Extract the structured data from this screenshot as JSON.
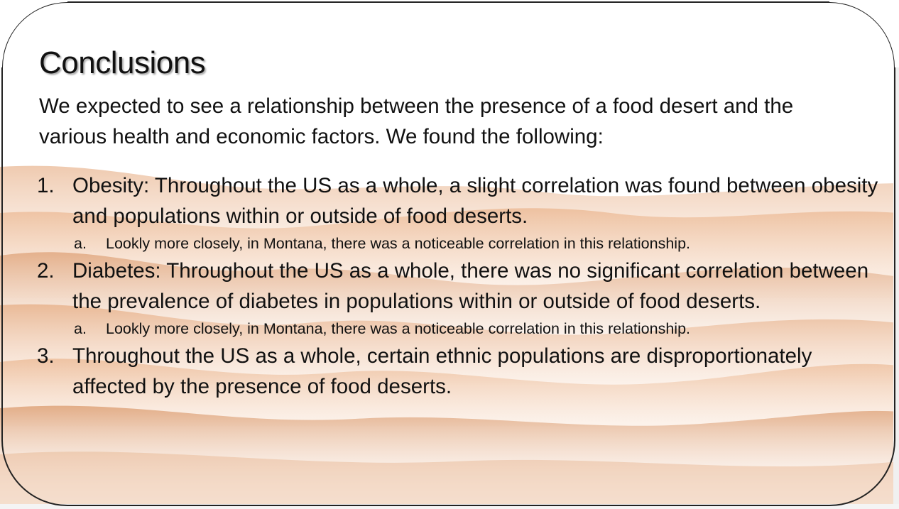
{
  "slide": {
    "title": "Conclusions",
    "intro": "We expected to see a relationship between the presence of a food desert and the various health and economic factors. We found the following:",
    "items": [
      {
        "marker": "1.",
        "text": "Obesity:  Throughout the US as a whole, a slight correlation was found between obesity and populations within or outside of food deserts.",
        "sub": {
          "marker": "a.",
          "text": "Lookly more closely, in Montana, there was a noticeable correlation in this relationship."
        }
      },
      {
        "marker": "2.",
        "text": "Diabetes:  Throughout the US as a whole, there was no significant correlation between the prevalence of diabetes in populations within or outside of food deserts.",
        "sub": {
          "marker": "a.",
          "text": "Lookly more closely, in Montana, there was a noticeable correlation in this relationship."
        }
      },
      {
        "marker": "3.",
        "text": "Throughout the US as a whole, certain ethnic populations are disproportionately affected by the presence of food deserts."
      }
    ]
  },
  "colors": {
    "dune_dark": "#d98a52",
    "dune_light": "#f3c9a8",
    "text": "#111111",
    "frame": "#222222"
  }
}
